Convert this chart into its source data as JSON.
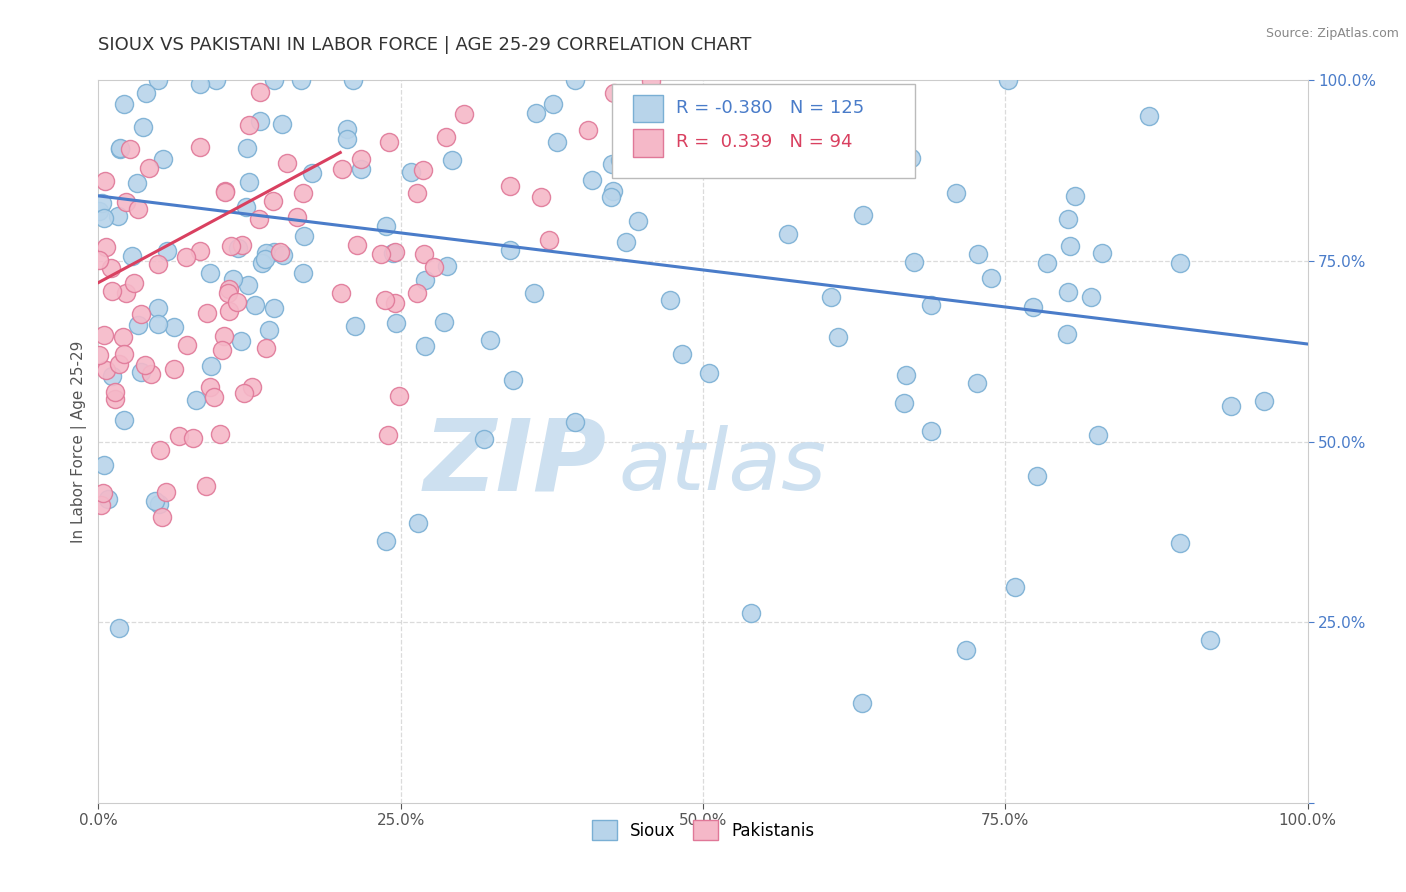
{
  "title": "SIOUX VS PAKISTANI IN LABOR FORCE | AGE 25-29 CORRELATION CHART",
  "source_text": "Source: ZipAtlas.com",
  "ylabel": "In Labor Force | Age 25-29",
  "sioux_R": -0.38,
  "sioux_N": 125,
  "pakistani_R": 0.339,
  "pakistani_N": 94,
  "sioux_color": "#b8d4ea",
  "sioux_edge_color": "#7aafd4",
  "pakistani_color": "#f5b8c8",
  "pakistani_edge_color": "#e07898",
  "sioux_line_color": "#4a7cc9",
  "pakistani_line_color": "#d94060",
  "background_color": "#ffffff",
  "grid_color": "#cccccc",
  "title_color": "#333333",
  "watermark_zip": "ZIP",
  "watermark_atlas": "atlas",
  "watermark_color": "#cde0f0",
  "legend_R_color_sioux": "#4a7cc9",
  "legend_R_color_pakistani": "#d94060",
  "tick_color_y": "#4a7cc9",
  "tick_color_x": "#555555"
}
